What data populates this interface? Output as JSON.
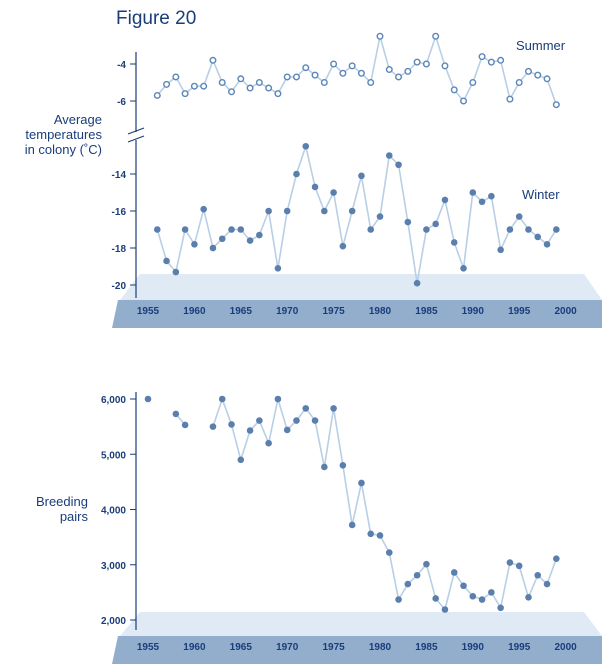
{
  "figure_title": "Figure 20",
  "chart_data": [
    {
      "type": "line",
      "ylabel": "Average temperatures in colony (˚C)",
      "ylabel_lines": [
        "Average",
        "temperatures",
        "in colony (˚C)"
      ],
      "xlim": [
        1953,
        2002
      ],
      "xticks": [
        1955,
        1960,
        1965,
        1970,
        1975,
        1980,
        1985,
        1990,
        1995,
        2000
      ],
      "axis_break": true,
      "grid": false,
      "colors": {
        "summer": "#5b86b8",
        "winter": "#5b7fad",
        "line": "#b8cfe6",
        "axis": "#1a3d7a"
      },
      "series": [
        {
          "name": "Summer",
          "marker": "open-circle",
          "yticks": [
            -4,
            -6
          ],
          "x": [
            1956,
            1957,
            1958,
            1959,
            1960,
            1961,
            1962,
            1963,
            1964,
            1965,
            1966,
            1967,
            1968,
            1969,
            1970,
            1971,
            1972,
            1973,
            1974,
            1975,
            1976,
            1977,
            1978,
            1979,
            1980,
            1981,
            1982,
            1983,
            1984,
            1985,
            1986,
            1987,
            1988,
            1989,
            1990,
            1991,
            1992,
            1993,
            1994,
            1995,
            1996,
            1997,
            1998,
            1999
          ],
          "y": [
            -5.7,
            -5.1,
            -4.7,
            -5.6,
            -5.2,
            -5.2,
            -3.8,
            -5.0,
            -5.5,
            -4.8,
            -5.3,
            -5.0,
            -5.3,
            -5.6,
            -4.7,
            -4.7,
            -4.2,
            -4.6,
            -5.0,
            -4.0,
            -4.5,
            -4.1,
            -4.5,
            -5.0,
            -2.5,
            -4.3,
            -4.7,
            -4.4,
            -3.9,
            -4.0,
            -2.5,
            -4.1,
            -5.4,
            -6.0,
            -5.0,
            -3.6,
            -3.9,
            -3.8,
            -5.9,
            -5.0,
            -4.4,
            -4.6,
            -4.8,
            -6.2
          ]
        },
        {
          "name": "Winter",
          "marker": "filled-circle",
          "yticks": [
            -14,
            -16,
            -18,
            -20
          ],
          "x": [
            1956,
            1957,
            1958,
            1959,
            1960,
            1961,
            1962,
            1963,
            1964,
            1965,
            1966,
            1967,
            1968,
            1969,
            1970,
            1971,
            1972,
            1973,
            1974,
            1975,
            1976,
            1977,
            1978,
            1979,
            1980,
            1981,
            1982,
            1983,
            1984,
            1985,
            1986,
            1987,
            1988,
            1989,
            1990,
            1991,
            1992,
            1993,
            1994,
            1995,
            1996,
            1997,
            1998,
            1999
          ],
          "y": [
            -17.0,
            -18.7,
            -19.3,
            -17.0,
            -17.8,
            -15.9,
            -18.0,
            -17.5,
            -17.0,
            -17.0,
            -17.6,
            -17.3,
            -16.0,
            -19.1,
            -16.0,
            -14.0,
            -12.5,
            -14.7,
            -16.0,
            -15.0,
            -17.9,
            -16.0,
            -14.1,
            -17.0,
            -16.3,
            -13.0,
            -13.5,
            -16.6,
            -19.9,
            -17.0,
            -16.7,
            -15.4,
            -17.7,
            -19.1,
            -15.0,
            -15.5,
            -15.2,
            -18.1,
            -17.0,
            -16.3,
            -17.0,
            -17.4,
            -17.8,
            -17.0
          ]
        }
      ]
    },
    {
      "type": "scatter",
      "ylabel": "Breeding pairs",
      "ylabel_lines": [
        "Breeding",
        "pairs"
      ],
      "xlim": [
        1953,
        2002
      ],
      "ylim": [
        2000,
        6000
      ],
      "xticks": [
        1955,
        1960,
        1965,
        1970,
        1975,
        1980,
        1985,
        1990,
        1995,
        2000
      ],
      "yticks": [
        6000,
        5000,
        4000,
        3000,
        2000
      ],
      "ytick_labels": [
        "6,000",
        "5,000",
        "4,000",
        "3,000",
        "2,000"
      ],
      "grid": false,
      "series": [
        {
          "name": "",
          "marker": "filled-circle",
          "points": [
            [
              1955,
              6000
            ],
            [
              1958,
              5730
            ],
            [
              1959,
              5530
            ],
            [
              1962,
              5500
            ],
            [
              1963,
              6000
            ],
            [
              1964,
              5540
            ],
            [
              1965,
              4900
            ],
            [
              1966,
              5430
            ],
            [
              1967,
              5610
            ],
            [
              1968,
              5200
            ],
            [
              1969,
              6000
            ],
            [
              1970,
              5440
            ],
            [
              1971,
              5610
            ],
            [
              1972,
              5830
            ],
            [
              1973,
              5610
            ],
            [
              1974,
              4770
            ],
            [
              1975,
              5830
            ],
            [
              1976,
              4800
            ],
            [
              1977,
              3720
            ],
            [
              1978,
              4480
            ],
            [
              1979,
              3560
            ],
            [
              1980,
              3530
            ],
            [
              1981,
              3220
            ],
            [
              1982,
              2370
            ],
            [
              1983,
              2650
            ],
            [
              1984,
              2810
            ],
            [
              1985,
              3010
            ],
            [
              1986,
              2390
            ],
            [
              1987,
              2190
            ],
            [
              1988,
              2860
            ],
            [
              1989,
              2620
            ],
            [
              1990,
              2430
            ],
            [
              1991,
              2370
            ],
            [
              1992,
              2500
            ],
            [
              1993,
              2220
            ],
            [
              1994,
              3040
            ],
            [
              1995,
              2980
            ],
            [
              1996,
              2410
            ],
            [
              1997,
              2810
            ],
            [
              1998,
              2650
            ],
            [
              1999,
              3110
            ]
          ],
          "line_segments": [
            [
              1958,
              1959
            ],
            [
              1962,
              1963
            ],
            [
              1963,
              1964
            ],
            [
              1964,
              1965
            ],
            [
              1965,
              1966
            ],
            [
              1966,
              1967
            ],
            [
              1967,
              1968
            ],
            [
              1968,
              1969
            ],
            [
              1969,
              1970
            ],
            [
              1970,
              1971
            ],
            [
              1971,
              1972
            ],
            [
              1972,
              1973
            ],
            [
              1973,
              1974
            ],
            [
              1974,
              1975
            ],
            [
              1975,
              1976
            ],
            [
              1976,
              1977
            ],
            [
              1977,
              1978
            ],
            [
              1978,
              1979
            ],
            [
              1979,
              1980
            ],
            [
              1980,
              1981
            ],
            [
              1981,
              1982
            ],
            [
              1982,
              1983
            ],
            [
              1983,
              1984
            ],
            [
              1984,
              1985
            ],
            [
              1985,
              1986
            ],
            [
              1986,
              1987
            ],
            [
              1987,
              1988
            ],
            [
              1988,
              1989
            ],
            [
              1989,
              1990
            ],
            [
              1990,
              1991
            ],
            [
              1991,
              1992
            ],
            [
              1992,
              1993
            ],
            [
              1993,
              1994
            ],
            [
              1994,
              1995
            ],
            [
              1995,
              1996
            ],
            [
              1996,
              1997
            ],
            [
              1997,
              1998
            ],
            [
              1998,
              1999
            ]
          ]
        }
      ]
    }
  ]
}
